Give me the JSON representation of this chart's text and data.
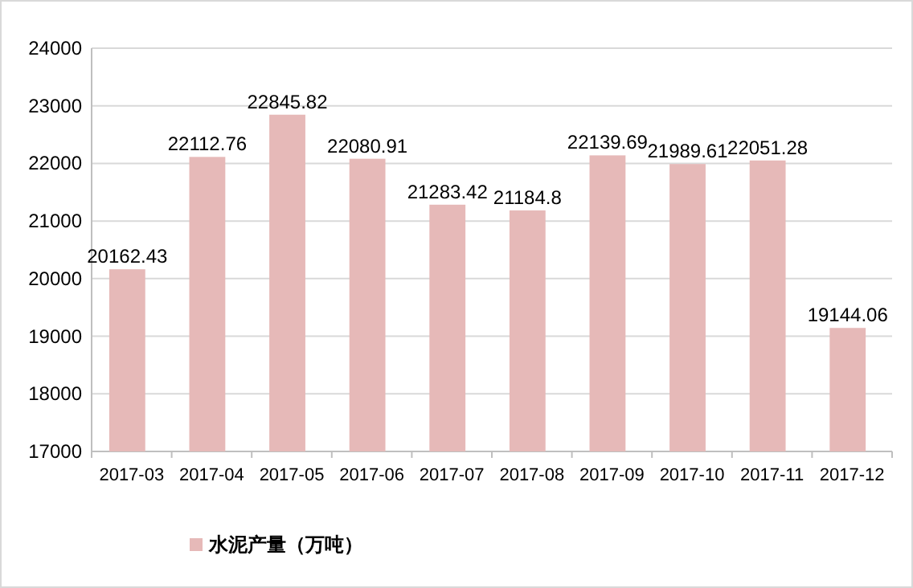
{
  "chart_data": {
    "type": "bar",
    "categories": [
      "2017-03",
      "2017-04",
      "2017-05",
      "2017-06",
      "2017-07",
      "2017-08",
      "2017-09",
      "2017-10",
      "2017-11",
      "2017-12"
    ],
    "series": [
      {
        "name": "水泥产量（万吨）",
        "color": "#e6b9b8",
        "values": [
          20162.43,
          22112.76,
          22845.82,
          22080.91,
          21283.42,
          21184.8,
          22139.69,
          21989.61,
          22051.28,
          19144.06
        ]
      }
    ],
    "ylim": [
      17000,
      24000
    ],
    "yticks": [
      17000,
      18000,
      19000,
      20000,
      21000,
      22000,
      23000,
      24000
    ],
    "grid": "y",
    "legend": "bottom",
    "data_labels": true
  }
}
